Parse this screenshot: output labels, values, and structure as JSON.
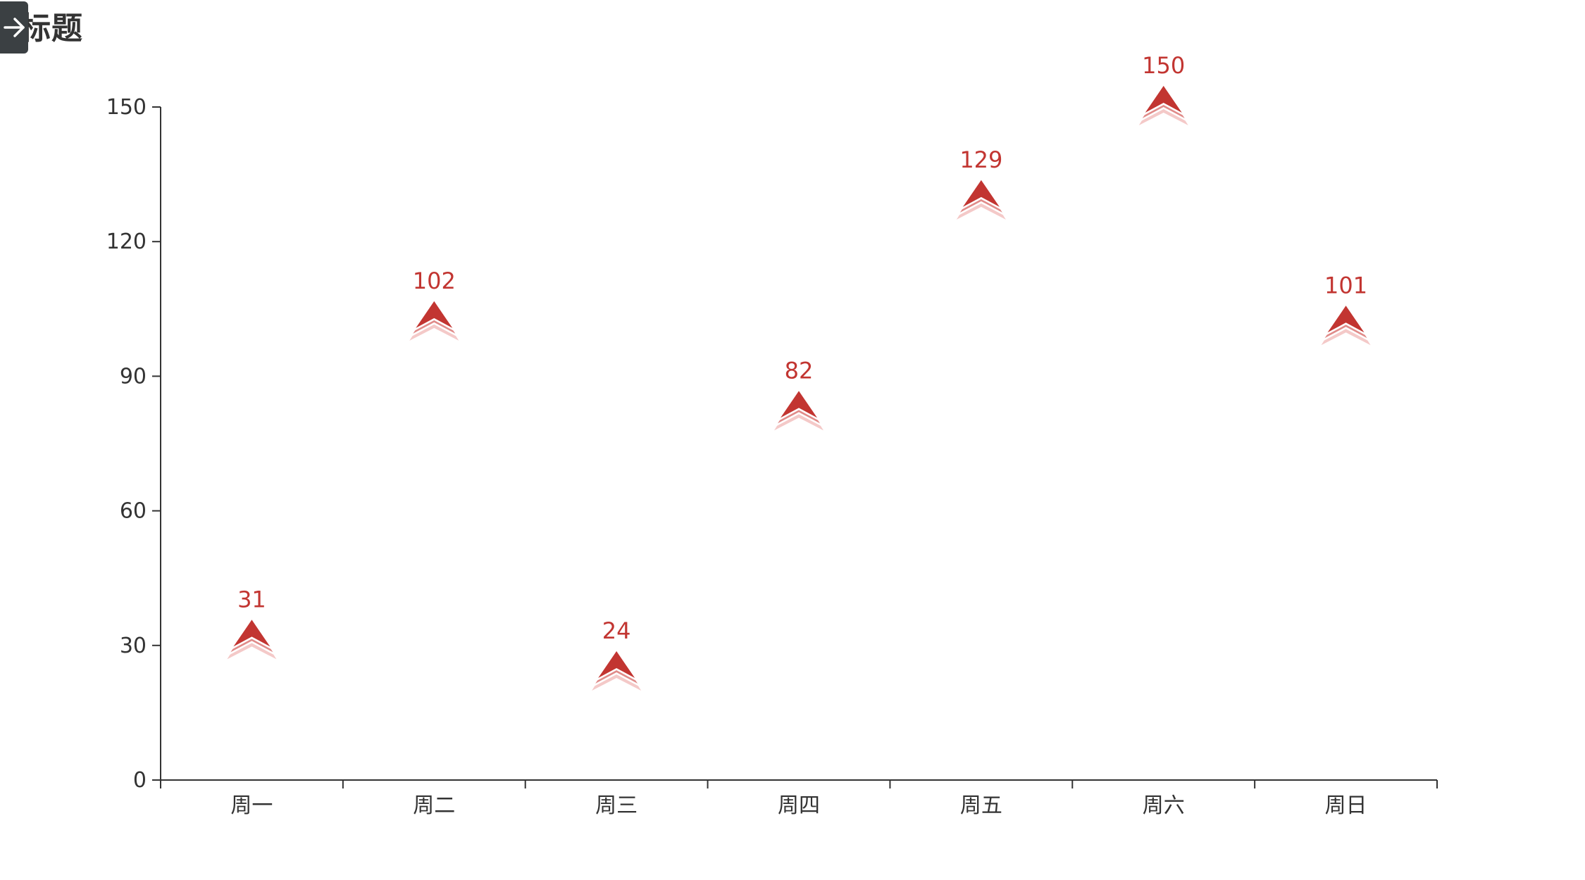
{
  "chart_data": {
    "type": "scatter",
    "title": "标题",
    "categories": [
      "周一",
      "周二",
      "周三",
      "周四",
      "周五",
      "周六",
      "周日"
    ],
    "series": [
      {
        "values": [
          31,
          102,
          24,
          82,
          129,
          150,
          101
        ],
        "symbol": "arrow",
        "color": "#c23531"
      }
    ],
    "ylim": [
      0,
      150
    ],
    "yticks": [
      0,
      30,
      60,
      90,
      120,
      150
    ],
    "xlabel": "",
    "ylabel": "",
    "grid": false,
    "data_labels": true
  },
  "ui": {
    "collapse_icon": "arrow-right-icon"
  }
}
